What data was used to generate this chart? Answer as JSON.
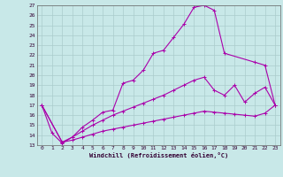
{
  "xlabel": "Windchill (Refroidissement éolien,°C)",
  "bg_color": "#c8e8e8",
  "line_color": "#aa00aa",
  "grid_color": "#aacccc",
  "xlim": [
    -0.5,
    23.5
  ],
  "ylim": [
    13,
    27
  ],
  "yticks": [
    13,
    14,
    15,
    16,
    17,
    18,
    19,
    20,
    21,
    22,
    23,
    24,
    25,
    26,
    27
  ],
  "xticks": [
    0,
    1,
    2,
    3,
    4,
    5,
    6,
    7,
    8,
    9,
    10,
    11,
    12,
    13,
    14,
    15,
    16,
    17,
    18,
    19,
    20,
    21,
    22,
    23
  ],
  "curves": [
    {
      "x": [
        0,
        1,
        2,
        3,
        4,
        5,
        6,
        7,
        8,
        9,
        10,
        11,
        12,
        13,
        14,
        15,
        16,
        17,
        18,
        21,
        22,
        23
      ],
      "y": [
        17,
        14.2,
        13.2,
        13.8,
        14.8,
        15.5,
        16.3,
        16.5,
        19.2,
        19.5,
        20.5,
        22.2,
        22.5,
        23.8,
        25.1,
        26.8,
        27.0,
        26.5,
        22.2,
        21.3,
        21.0,
        17.0
      ]
    },
    {
      "x": [
        0,
        2,
        3,
        4,
        5,
        6,
        7,
        8,
        9,
        10,
        11,
        12,
        13,
        14,
        15,
        16,
        17,
        18,
        19,
        20,
        21,
        22,
        23
      ],
      "y": [
        17,
        13.3,
        13.8,
        14.4,
        15.0,
        15.5,
        16.0,
        16.4,
        16.8,
        17.2,
        17.6,
        18.0,
        18.5,
        19.0,
        19.5,
        19.8,
        18.5,
        18.0,
        19.0,
        17.3,
        18.2,
        18.8,
        17.0
      ]
    },
    {
      "x": [
        0,
        2,
        3,
        4,
        5,
        6,
        7,
        8,
        9,
        10,
        11,
        12,
        13,
        14,
        15,
        16,
        17,
        18,
        19,
        20,
        21,
        22,
        23
      ],
      "y": [
        17,
        13.3,
        13.5,
        13.8,
        14.1,
        14.4,
        14.6,
        14.8,
        15.0,
        15.2,
        15.4,
        15.6,
        15.8,
        16.0,
        16.2,
        16.4,
        16.3,
        16.2,
        16.1,
        16.0,
        15.9,
        16.2,
        17.0
      ]
    }
  ]
}
